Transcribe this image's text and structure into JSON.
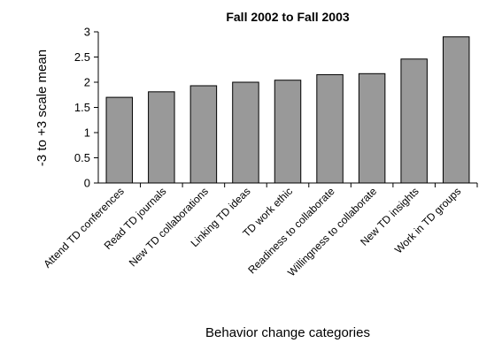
{
  "chart_data": {
    "type": "bar",
    "title": "Fall 2002 to Fall 2003",
    "xlabel": "Behavior change categories",
    "ylabel": "-3 to +3 scale mean",
    "ylim": [
      0,
      3
    ],
    "yticks": [
      "0",
      "0.5",
      "1",
      "1.5",
      "2",
      "2.5",
      "3"
    ],
    "categories": [
      "Attend TD conferences",
      "Read TD journals",
      "New TD collaborations",
      "Linking TD  ideas",
      "TD work ethic",
      "Readiness to collaborate",
      "Willingness to collaborate",
      "New TD insights",
      "Work in TD groups"
    ],
    "values": [
      1.7,
      1.81,
      1.93,
      2.0,
      2.04,
      2.15,
      2.17,
      2.46,
      2.9
    ],
    "grid": false,
    "legend": "none",
    "colors": {
      "bar": "#999999",
      "bar_outline": "#000000"
    }
  }
}
